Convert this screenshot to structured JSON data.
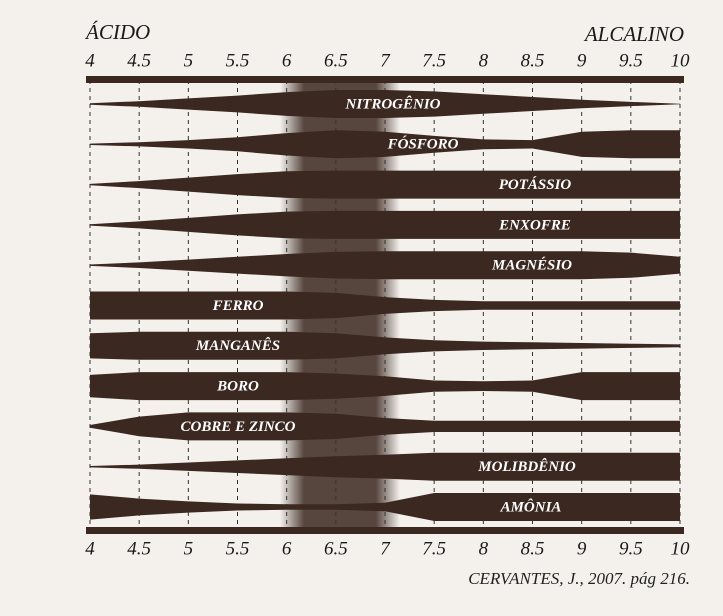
{
  "chart_data": {
    "type": "availability",
    "left_label": "ÁCIDO",
    "right_label": "ALCALINO",
    "source": "CERVANTES, J., 2007. pág 216.",
    "x": [
      4,
      4.5,
      5,
      5.5,
      6,
      6.5,
      7,
      7.5,
      8,
      8.5,
      9,
      9.5,
      10
    ],
    "xlim": [
      4,
      10
    ],
    "xticks": [
      4,
      4.5,
      5,
      5.5,
      6,
      6.5,
      7,
      7.5,
      8,
      8.5,
      9,
      9.5,
      10
    ],
    "color": "#3b2820",
    "grid": true,
    "series": [
      {
        "name": "NITROGÊNIO",
        "values": [
          0.05,
          0.2,
          0.4,
          0.6,
          0.85,
          1,
          1,
          0.9,
          0.7,
          0.5,
          0.3,
          0.15,
          0.02
        ]
      },
      {
        "name": "FÓSFORO",
        "values": [
          0.05,
          0.15,
          0.3,
          0.5,
          0.8,
          1,
          0.9,
          0.6,
          0.35,
          0.3,
          0.9,
          1,
          1
        ]
      },
      {
        "name": "POTÁSSIO",
        "values": [
          0.05,
          0.25,
          0.5,
          0.75,
          0.95,
          1,
          1,
          1,
          1,
          1,
          1,
          1,
          1
        ]
      },
      {
        "name": "ENXOFRE",
        "values": [
          0.05,
          0.25,
          0.5,
          0.75,
          0.95,
          1,
          1,
          1,
          1,
          1,
          1,
          1,
          1
        ]
      },
      {
        "name": "MAGNÉSIO",
        "values": [
          0.05,
          0.2,
          0.4,
          0.6,
          0.8,
          0.95,
          1,
          1,
          1,
          1,
          1,
          0.9,
          0.6
        ]
      },
      {
        "name": "FERRO",
        "values": [
          1,
          1,
          1,
          1,
          1,
          0.9,
          0.6,
          0.4,
          0.3,
          0.3,
          0.3,
          0.3,
          0.3
        ]
      },
      {
        "name": "MANGANÊS",
        "values": [
          0.9,
          1,
          1,
          1,
          1,
          0.9,
          0.6,
          0.4,
          0.3,
          0.25,
          0.2,
          0.15,
          0.1
        ]
      },
      {
        "name": "BORO",
        "values": [
          0.8,
          1,
          1,
          1,
          1,
          0.9,
          0.7,
          0.4,
          0.35,
          0.4,
          1,
          1,
          1
        ]
      },
      {
        "name": "COBRE E ZINCO",
        "values": [
          0.1,
          0.7,
          1,
          1,
          1,
          0.9,
          0.6,
          0.4,
          0.4,
          0.4,
          0.4,
          0.4,
          0.4
        ]
      },
      {
        "name": "MOLIBDÊNIO",
        "values": [
          0.05,
          0.15,
          0.3,
          0.45,
          0.6,
          0.75,
          0.85,
          1,
          1,
          1,
          1,
          1,
          1
        ]
      },
      {
        "name": "AMÔNIA",
        "values": [
          0.9,
          0.6,
          0.4,
          0.25,
          0.2,
          0.2,
          0.3,
          1,
          1,
          1,
          1,
          1,
          1
        ]
      }
    ]
  }
}
